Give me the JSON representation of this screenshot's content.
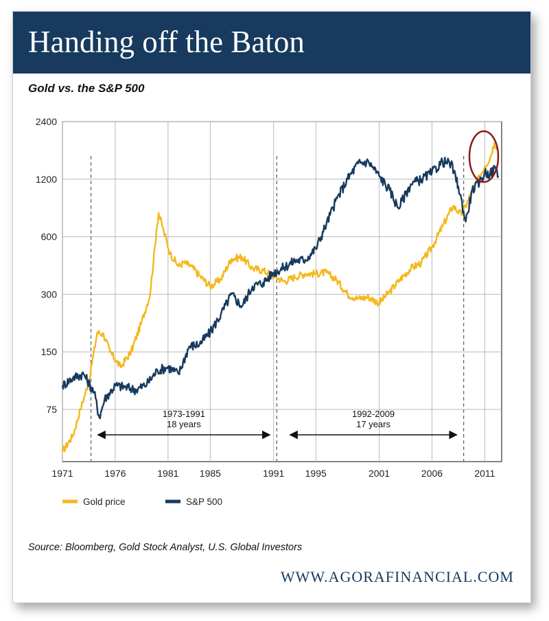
{
  "header": {
    "title": "Handing off the Baton",
    "subtitle": "Gold vs. the S&P 500"
  },
  "footer": {
    "source": "Source: Bloomberg, Gold Stock Analyst, U.S. Global Investors",
    "website": "WWW.AGORAFINANCIAL.COM"
  },
  "chart_data": {
    "type": "line",
    "y_scale": "log",
    "ylim": [
      40,
      2400
    ],
    "xlim": [
      1971,
      2012.6
    ],
    "y_ticks": [
      "2400",
      "1200",
      "600",
      "300",
      "150",
      "75"
    ],
    "x_ticks": [
      "1971",
      "1976",
      "1981",
      "1985",
      "1991",
      "1995",
      "2001",
      "2006",
      "2011"
    ],
    "grid": true,
    "legend_position": "bottom-left",
    "colors": {
      "gold": "#f5b71b",
      "sp500": "#173a5e",
      "highlight_circle": "#8b1a1a"
    },
    "series": [
      {
        "name": "Gold price",
        "color": "#f5b71b",
        "x": [
          1971,
          1972,
          1972.7,
          1973.5,
          1974.3,
          1974.9,
          1975.5,
          1976.5,
          1977.5,
          1978.5,
          1979.3,
          1979.9,
          1980.1,
          1980.6,
          1981.2,
          1982.0,
          1982.5,
          1983.2,
          1984.0,
          1985.0,
          1986.0,
          1987.0,
          1988.0,
          1989.0,
          1990.0,
          1991.0,
          1992.0,
          1993.0,
          1994.0,
          1995.0,
          1996.0,
          1997.0,
          1998.0,
          1999.0,
          2000.0,
          2001.0,
          2002.0,
          2003.0,
          2004.0,
          2005.0,
          2006.0,
          2007.0,
          2008.0,
          2008.8,
          2009.5,
          2010.0,
          2010.5,
          2011.0,
          2011.5,
          2011.9,
          2012.2
        ],
        "values": [
          45,
          55,
          75,
          105,
          190,
          185,
          150,
          125,
          150,
          215,
          300,
          640,
          800,
          640,
          490,
          420,
          440,
          420,
          375,
          330,
          360,
          460,
          470,
          410,
          400,
          375,
          350,
          370,
          385,
          385,
          390,
          355,
          300,
          285,
          290,
          270,
          310,
          360,
          410,
          440,
          530,
          680,
          870,
          780,
          950,
          1100,
          1230,
          1400,
          1550,
          1850,
          1780
        ]
      },
      {
        "name": "S&P 500",
        "color": "#173a5e",
        "x": [
          1971,
          1972,
          1973,
          1974,
          1974.5,
          1975,
          1976,
          1977,
          1978,
          1979,
          1980,
          1981,
          1982,
          1983,
          1984,
          1985,
          1986,
          1987,
          1988,
          1989,
          1990,
          1991,
          1992,
          1993,
          1994,
          1995,
          1996,
          1997,
          1998,
          1999,
          2000,
          2001,
          2002,
          2002.8,
          2003.5,
          2004,
          2005,
          2006,
          2007,
          2007.8,
          2008.5,
          2009.2,
          2009.8,
          2010.5,
          2011,
          2011.5,
          2012,
          2012.3
        ],
        "values": [
          100,
          110,
          115,
          92,
          68,
          85,
          100,
          98,
          95,
          102,
          120,
          125,
          115,
          160,
          165,
          190,
          235,
          300,
          260,
          330,
          345,
          390,
          415,
          450,
          455,
          520,
          700,
          950,
          1200,
          1450,
          1480,
          1250,
          1050,
          850,
          1000,
          1130,
          1200,
          1300,
          1480,
          1450,
          1100,
          720,
          1050,
          1150,
          1300,
          1280,
          1380,
          1250
        ]
      }
    ],
    "annotations": [
      {
        "label": "1973-1991",
        "sublabel": "18 years",
        "start": 1973.7,
        "end": 1991.3
      },
      {
        "label": "1992-2009",
        "sublabel": "17 years",
        "start": 1991.9,
        "end": 2009.0
      }
    ],
    "vertical_markers": [
      1973.7,
      1991.3,
      2009.0
    ]
  }
}
